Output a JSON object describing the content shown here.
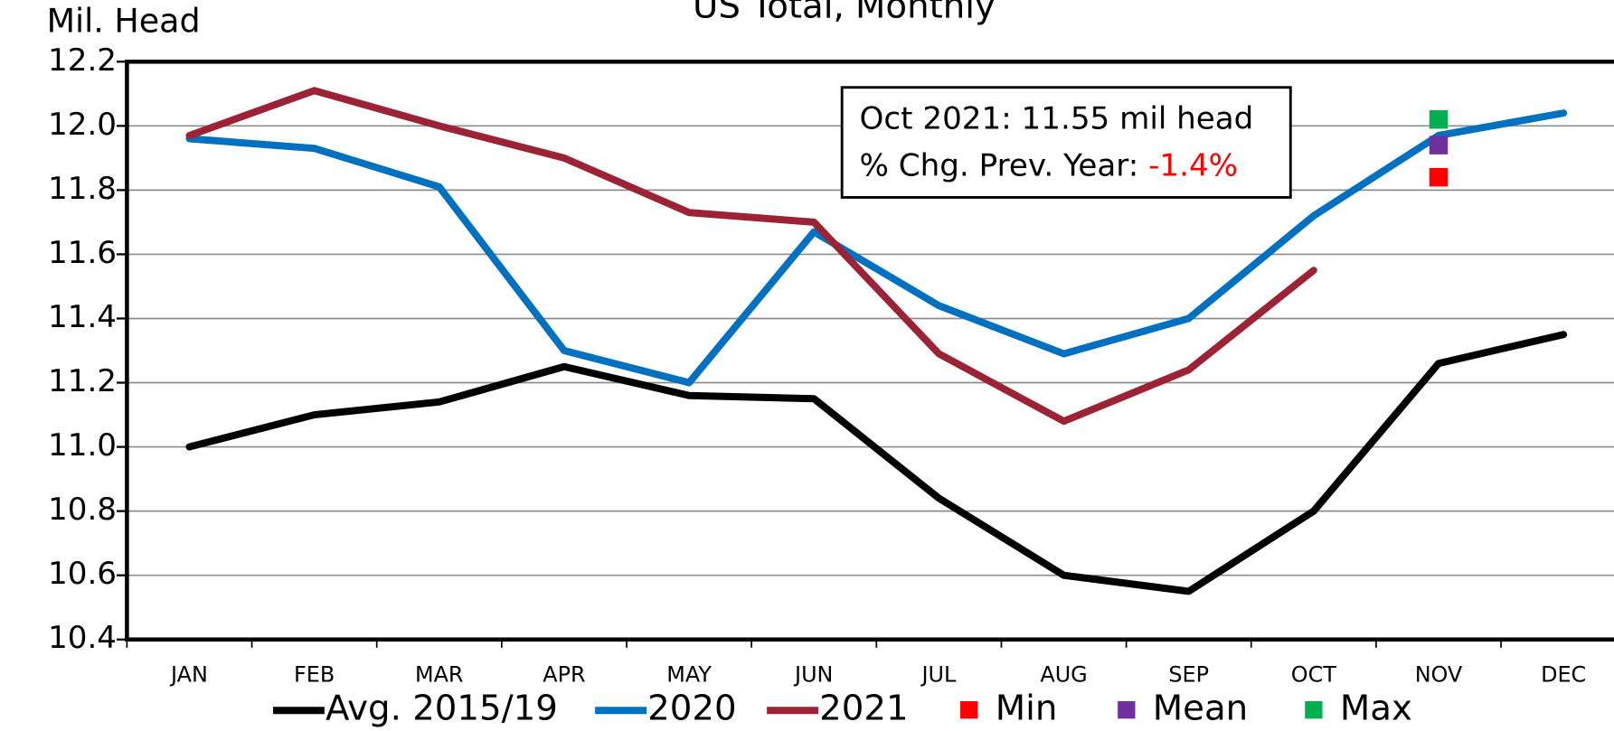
{
  "chart_data": {
    "type": "line",
    "title": "US Total, Monthly",
    "y_label": "Mil. Head",
    "categories": [
      "JAN",
      "FEB",
      "MAR",
      "APR",
      "MAY",
      "JUN",
      "JUL",
      "AUG",
      "SEP",
      "OCT",
      "NOV",
      "DEC"
    ],
    "series": [
      {
        "name": "Avg. 2015/19",
        "color": "#000000",
        "values": [
          11.0,
          11.1,
          11.14,
          11.25,
          11.16,
          11.15,
          10.84,
          10.6,
          10.55,
          10.8,
          11.26,
          11.35
        ]
      },
      {
        "name": "2020",
        "color": "#0070c0",
        "values": [
          11.96,
          11.93,
          11.81,
          11.3,
          11.2,
          11.67,
          11.44,
          11.29,
          11.4,
          11.72,
          11.97,
          12.04
        ]
      },
      {
        "name": "2021",
        "color": "#9b2335",
        "values": [
          11.97,
          12.11,
          12.0,
          11.9,
          11.73,
          11.7,
          11.29,
          11.08,
          11.24,
          11.55,
          null,
          null
        ]
      },
      {
        "name": "Min",
        "color": "#ff0000",
        "marker": "square",
        "values": [
          null,
          null,
          null,
          null,
          null,
          null,
          null,
          null,
          null,
          null,
          11.84,
          null
        ]
      },
      {
        "name": "Mean",
        "color": "#7030a0",
        "marker": "square",
        "values": [
          null,
          null,
          null,
          null,
          null,
          null,
          null,
          null,
          null,
          null,
          11.94,
          null
        ]
      },
      {
        "name": "Max",
        "color": "#00b050",
        "marker": "square",
        "values": [
          null,
          null,
          null,
          null,
          null,
          null,
          null,
          null,
          null,
          null,
          12.02,
          null
        ]
      }
    ],
    "annotation": {
      "line1": "Oct 2021: 11.55 mil head",
      "line2_label": "% Chg. Prev. Year: ",
      "line2_value": "-1.4%",
      "line2_value_color": "#ff0000"
    },
    "ylim": [
      10.4,
      12.2
    ],
    "yticks": [
      {
        "value": 10.4,
        "label": "10.4"
      },
      {
        "value": 10.6,
        "label": "10.6"
      },
      {
        "value": 10.8,
        "label": "10.8"
      },
      {
        "value": 11.0,
        "label": "11.0"
      },
      {
        "value": 11.2,
        "label": "11.2"
      },
      {
        "value": 11.4,
        "label": "11.4"
      },
      {
        "value": 11.6,
        "label": "11.6"
      },
      {
        "value": 11.8,
        "label": "11.8"
      },
      {
        "value": 12.0,
        "label": "12.0"
      },
      {
        "value": 12.2,
        "label": "12.2"
      }
    ],
    "grid": true,
    "legend": "bottom"
  }
}
